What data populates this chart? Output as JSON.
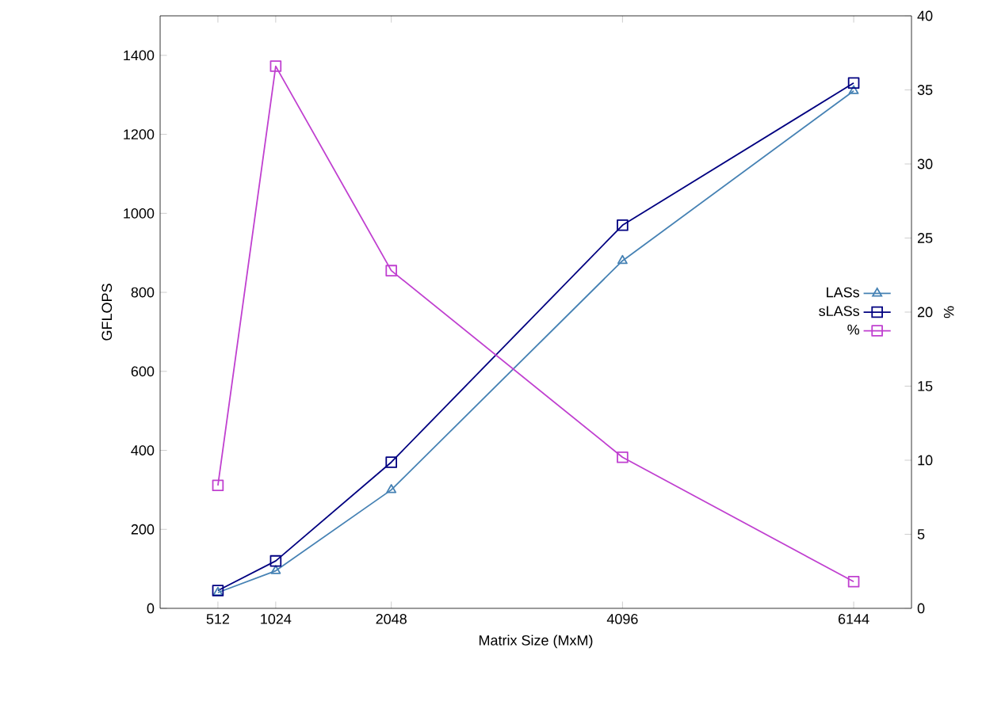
{
  "chart_data": {
    "type": "line",
    "xlabel": "Matrix Size (MxM)",
    "ylabel": "GFLOPS",
    "y2label": "%",
    "x": [
      512,
      1024,
      2048,
      4096,
      6144
    ],
    "series": [
      {
        "name": "LASs",
        "color": "#4682b4",
        "marker": "triangle",
        "values": [
          40,
          95,
          300,
          880,
          1310
        ]
      },
      {
        "name": "sLASs",
        "color": "#000080",
        "marker": "square",
        "values": [
          45,
          120,
          370,
          970,
          1330
        ]
      },
      {
        "name": "%",
        "color": "#c040d0",
        "marker": "square",
        "axis": "y2",
        "values": [
          8.3,
          36.6,
          22.8,
          10.2,
          1.8
        ]
      }
    ],
    "xlim": [
      0,
      6656
    ],
    "xticks": [
      512,
      1024,
      2048,
      4096,
      6144
    ],
    "ylim": [
      0,
      1500
    ],
    "yticks": [
      0,
      200,
      400,
      600,
      800,
      1000,
      1200,
      1400
    ],
    "y2lim": [
      0,
      40
    ],
    "y2ticks": [
      0,
      5,
      10,
      15,
      20,
      25,
      30,
      35,
      40
    ],
    "legend": "right",
    "grid": false,
    "line_style": "solid"
  }
}
